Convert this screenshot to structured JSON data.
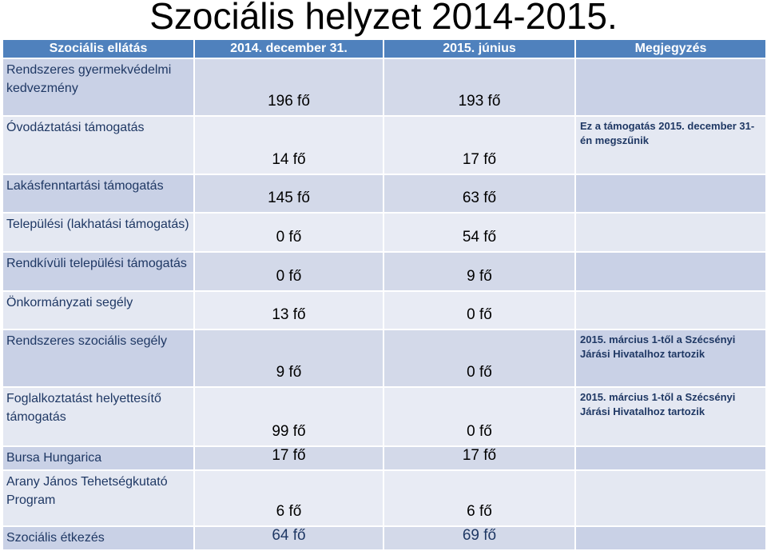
{
  "title": "Szociális helyzet 2014-2015.",
  "headers": [
    "Szociális ellátás",
    "2014. december 31.",
    "2015. június",
    "Megjegyzés"
  ],
  "rows": [
    {
      "name": "Rendszeres gyermekvédelmi kedvezmény",
      "v2014": "196 fő",
      "v2015": "193 fő",
      "note": ""
    },
    {
      "name": "Óvodáztatási támogatás",
      "v2014": "14 fő",
      "v2015": "17 fő",
      "note": "Ez a támogatás 2015. december 31-én megszűnik"
    },
    {
      "name": "Lakásfenntartási támogatás",
      "v2014": "145 fő",
      "v2015": "63 fő",
      "note": ""
    },
    {
      "name": "Települési (lakhatási támogatás)",
      "v2014": "0 fő",
      "v2015": "54 fő",
      "note": ""
    },
    {
      "name": "Rendkívüli települési támogatás",
      "v2014": "0 fő",
      "v2015": "9 fő",
      "note": ""
    },
    {
      "name": "Önkormányzati segély",
      "v2014": "13 fő",
      "v2015": "0 fő",
      "note": ""
    },
    {
      "name": "Rendszeres szociális segély",
      "v2014": "9 fő",
      "v2015": "0 fő",
      "note": "2015. március 1-től a Szécsényi Járási Hivatalhoz tartozik"
    },
    {
      "name": "Foglalkoztatást helyettesítő támogatás",
      "v2014": "99 fő",
      "v2015": "0 fő",
      "note": "2015. március 1-től a Szécsényi Járási Hivatalhoz tartozik"
    },
    {
      "name": "Bursa Hungarica",
      "v2014": "17 fő",
      "v2015": "17 fő",
      "note": ""
    },
    {
      "name": "Arany János Tehetségkutató Program",
      "v2014": "6 fő",
      "v2015": "6 fő",
      "note": ""
    },
    {
      "name": "Szociális étkezés",
      "v2014": "64 fő",
      "v2015": "69 fő",
      "note": ""
    }
  ]
}
